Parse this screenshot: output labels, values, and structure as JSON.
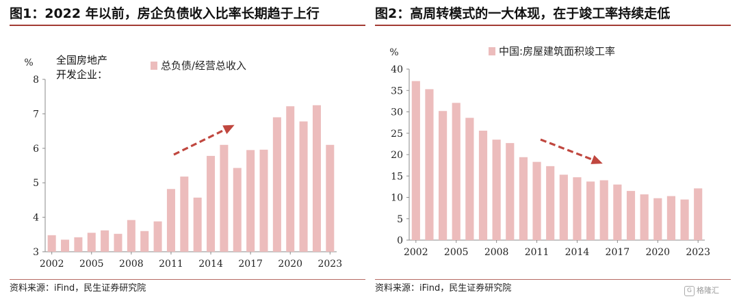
{
  "left": {
    "title": "图1：2022 年以前，房企负债收入比率长期趋于上行",
    "source": "资料来源：iFind，民生证券研究院",
    "chart_data": {
      "type": "bar",
      "unit_label": "%",
      "annotation_lines": [
        "全国房地产",
        "开发企业："
      ],
      "legend": "总负债/经营总收入",
      "legend_position": "top-center",
      "x": [
        2002,
        2003,
        2004,
        2005,
        2006,
        2007,
        2008,
        2009,
        2010,
        2011,
        2012,
        2013,
        2014,
        2015,
        2016,
        2017,
        2018,
        2019,
        2020,
        2021,
        2022,
        2023
      ],
      "x_tick_labels": [
        "2002",
        "2005",
        "2008",
        "2011",
        "2014",
        "2017",
        "2020",
        "2023"
      ],
      "values": [
        3.48,
        3.35,
        3.42,
        3.55,
        3.62,
        3.52,
        3.92,
        3.6,
        3.88,
        4.82,
        5.18,
        4.57,
        5.78,
        6.1,
        5.43,
        5.95,
        5.96,
        6.9,
        7.22,
        6.78,
        7.25,
        6.1
      ],
      "y_tick_labels": [
        "3",
        "4",
        "5",
        "6",
        "7",
        "8"
      ],
      "ylim": [
        3,
        8
      ],
      "grid": false,
      "bar_color": "#ecbcbc",
      "arrow_color": "#c0473f"
    }
  },
  "right": {
    "title": "图2：高周转模式的一大体现，在于竣工率持续走低",
    "source": "资料来源：iFind，民生证券研究院",
    "chart_data": {
      "type": "bar",
      "unit_label": "%",
      "legend": "中国:房屋建筑面积竣工率",
      "legend_position": "top-center",
      "x": [
        2002,
        2003,
        2004,
        2005,
        2006,
        2007,
        2008,
        2009,
        2010,
        2011,
        2012,
        2013,
        2014,
        2015,
        2016,
        2017,
        2018,
        2019,
        2020,
        2021,
        2022,
        2023
      ],
      "x_tick_labels": [
        "2002",
        "2005",
        "2008",
        "2011",
        "2014",
        "2017",
        "2020",
        "2023"
      ],
      "values": [
        37.2,
        35.3,
        30.2,
        32.1,
        28.6,
        25.6,
        23.5,
        22.7,
        19.4,
        18.3,
        17.3,
        15.3,
        14.7,
        13.7,
        14.0,
        13.0,
        11.5,
        10.7,
        9.8,
        10.3,
        9.5,
        12.1
      ],
      "y_tick_labels": [
        "0",
        "5",
        "10",
        "15",
        "20",
        "25",
        "30",
        "35",
        "40"
      ],
      "ylim": [
        0,
        40
      ],
      "grid": false,
      "bar_color": "#ecbcbc",
      "arrow_color": "#c0473f"
    }
  },
  "watermark": "格隆汇"
}
